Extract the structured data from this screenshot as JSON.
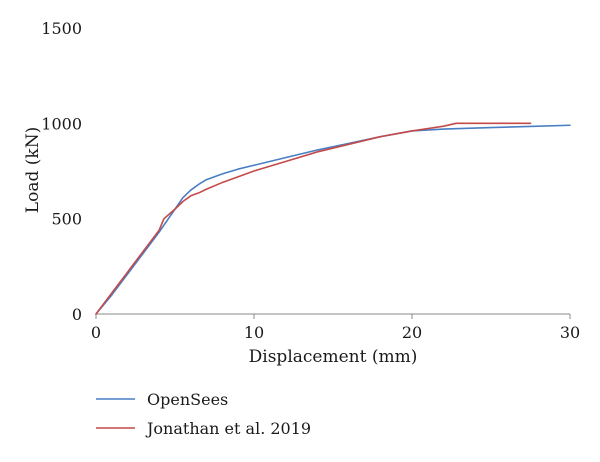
{
  "chart_data": {
    "type": "line",
    "title": "",
    "xlabel": "Displacement (mm)",
    "ylabel": "Load (kN)",
    "xlim": [
      0,
      30
    ],
    "ylim": [
      0,
      1500
    ],
    "xticks": [
      "0",
      "10",
      "20",
      "30"
    ],
    "yticks": [
      "0",
      "500",
      "1000",
      "1500"
    ],
    "grid": false,
    "legend_position": "bottom-left",
    "series": [
      {
        "name": "OpenSees",
        "color": "#4a7ec4",
        "x": [
          0,
          1,
          2,
          3,
          4,
          4.5,
          5,
          5.5,
          6,
          6.5,
          7,
          8,
          9,
          10,
          12,
          14,
          16,
          18,
          20,
          22,
          25,
          28,
          30
        ],
        "y": [
          0,
          100,
          210,
          320,
          430,
          490,
          550,
          610,
          650,
          680,
          705,
          735,
          760,
          780,
          820,
          860,
          895,
          930,
          960,
          970,
          978,
          985,
          990
        ]
      },
      {
        "name": "Jonathan et al. 2019",
        "color": "#c44a4a",
        "x": [
          0,
          1,
          2,
          3,
          4,
          4.3,
          5,
          5.5,
          6,
          6.5,
          7,
          8,
          9,
          10,
          12,
          14,
          16,
          18,
          20,
          22,
          22.8,
          25,
          27.5
        ],
        "y": [
          0,
          110,
          220,
          330,
          440,
          500,
          550,
          590,
          620,
          635,
          655,
          690,
          720,
          750,
          800,
          850,
          890,
          930,
          960,
          985,
          1000,
          1000,
          1000
        ]
      }
    ]
  }
}
